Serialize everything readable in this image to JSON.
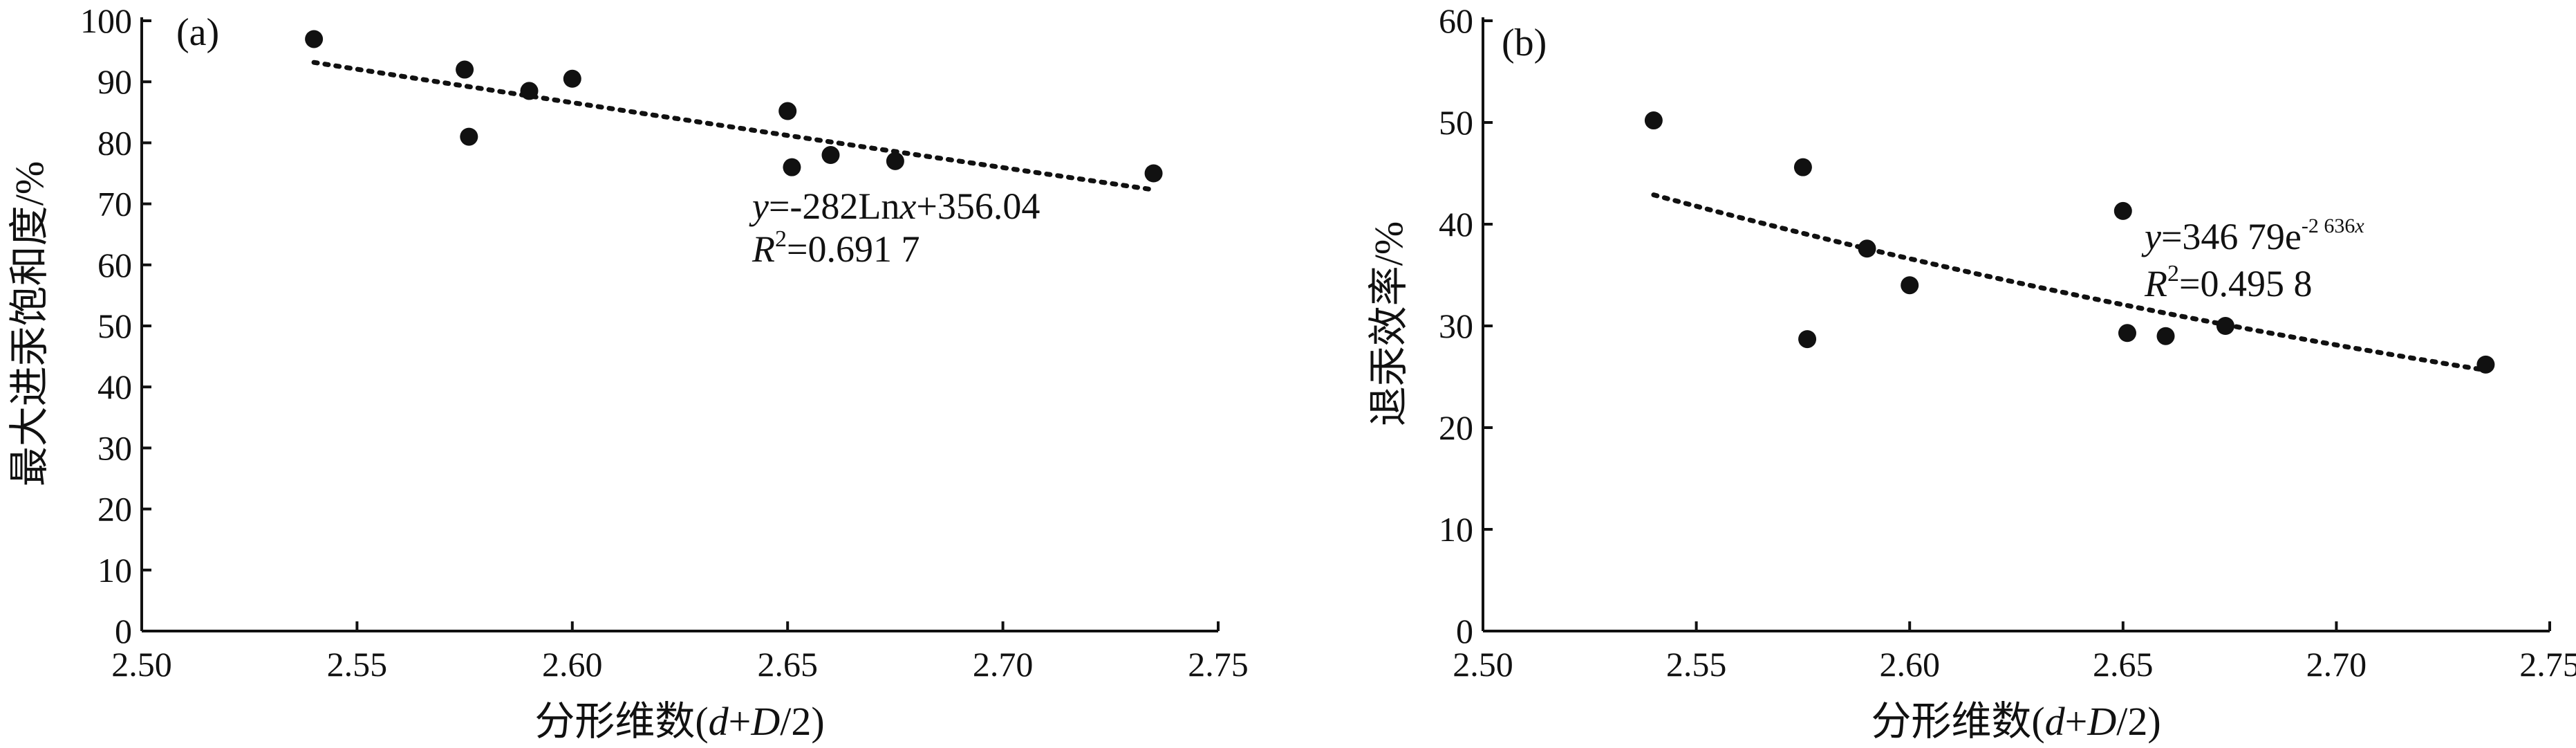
{
  "chart_data": [
    {
      "type": "scatter",
      "panel_label": "(a)",
      "xlabel": "分形维数(d+D/2)",
      "xlabel_parts": [
        "分形维数(",
        "d",
        "+",
        "D",
        "/2)"
      ],
      "ylabel": "最大进汞饱和度/%",
      "xlim": [
        2.5,
        2.75
      ],
      "ylim": [
        0,
        100
      ],
      "xticks": [
        "2.50",
        "2.55",
        "2.60",
        "2.65",
        "2.70",
        "2.75"
      ],
      "yticks": [
        "0",
        "10",
        "20",
        "30",
        "40",
        "50",
        "60",
        "70",
        "80",
        "90",
        "100"
      ],
      "grid": false,
      "points": [
        {
          "x": 2.54,
          "y": 97
        },
        {
          "x": 2.575,
          "y": 92
        },
        {
          "x": 2.576,
          "y": 81
        },
        {
          "x": 2.59,
          "y": 88.5
        },
        {
          "x": 2.6,
          "y": 90.5
        },
        {
          "x": 2.65,
          "y": 85.2
        },
        {
          "x": 2.651,
          "y": 76
        },
        {
          "x": 2.66,
          "y": 78
        },
        {
          "x": 2.675,
          "y": 77
        },
        {
          "x": 2.735,
          "y": 75
        }
      ],
      "trendline": {
        "type": "logarithmic",
        "a": -282,
        "b": 356.04,
        "x_range": [
          2.54,
          2.735
        ]
      },
      "equation": {
        "y_var": "y",
        "eq_text": "=-282Ln",
        "x_var": "x",
        "rest": "+356.04"
      },
      "r2": {
        "r_var": "R",
        "sup": "2",
        "value": "=0.691 7"
      }
    },
    {
      "type": "scatter",
      "panel_label": "(b)",
      "xlabel": "分形维数(d+D/2)",
      "xlabel_parts": [
        "分形维数(",
        "d",
        "+",
        "D",
        "/2)"
      ],
      "ylabel": "退汞效率/%",
      "xlim": [
        2.5,
        2.75
      ],
      "ylim": [
        0,
        60
      ],
      "xticks": [
        "2.50",
        "2.55",
        "2.60",
        "2.65",
        "2.70",
        "2.75"
      ],
      "yticks": [
        "0",
        "10",
        "20",
        "30",
        "40",
        "50",
        "60"
      ],
      "grid": false,
      "points": [
        {
          "x": 2.54,
          "y": 50.2
        },
        {
          "x": 2.575,
          "y": 45.6
        },
        {
          "x": 2.576,
          "y": 28.7
        },
        {
          "x": 2.59,
          "y": 37.6
        },
        {
          "x": 2.6,
          "y": 34
        },
        {
          "x": 2.65,
          "y": 41.3
        },
        {
          "x": 2.651,
          "y": 29.3
        },
        {
          "x": 2.66,
          "y": 29
        },
        {
          "x": 2.674,
          "y": 30
        },
        {
          "x": 2.735,
          "y": 26.2
        }
      ],
      "trendline": {
        "type": "exponential",
        "a": 34679,
        "k": -2.636,
        "x_range": [
          2.54,
          2.735
        ]
      },
      "equation": {
        "y_var": "y",
        "eq_text": "=346 79e",
        "sup": "-2 636",
        "sup_var": "x"
      },
      "r2": {
        "r_var": "R",
        "sup": "2",
        "value": "=0.495 8"
      }
    }
  ]
}
